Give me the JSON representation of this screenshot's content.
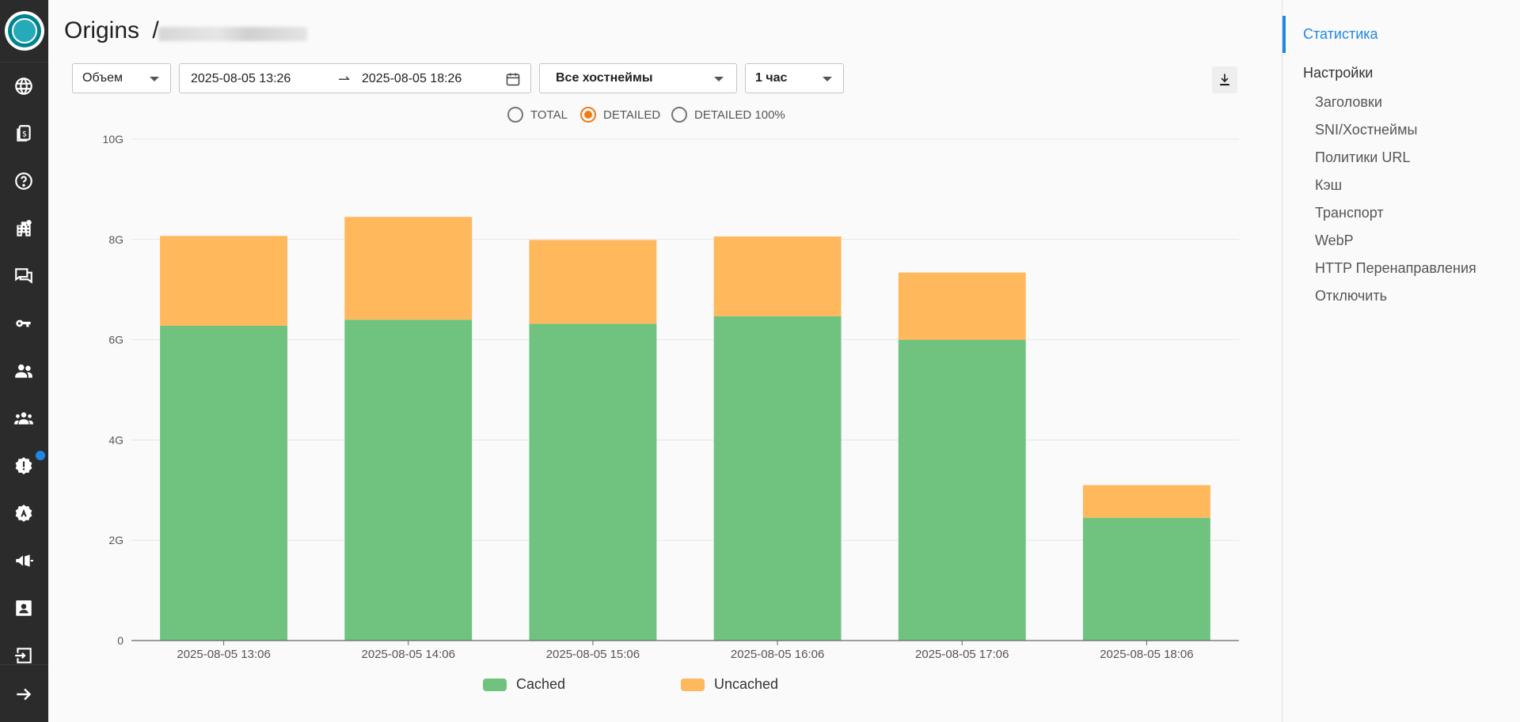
{
  "header": {
    "title": "Origins",
    "separator": "/"
  },
  "filters": {
    "metric": "Объем",
    "date_from": "2025-08-05 13:26",
    "date_to": "2025-08-05 18:26",
    "arrow": "⇀",
    "hostnames": "Все хостнеймы",
    "interval": "1 час"
  },
  "radios": [
    {
      "label": "TOTAL",
      "checked": false
    },
    {
      "label": "DETAILED",
      "checked": true
    },
    {
      "label": "DETAILED 100%",
      "checked": false
    }
  ],
  "chart_data": {
    "type": "bar",
    "stacked": true,
    "categories": [
      "2025-08-05 13:06",
      "2025-08-05 14:06",
      "2025-08-05 15:06",
      "2025-08-05 16:06",
      "2025-08-05 17:06",
      "2025-08-05 18:06"
    ],
    "series": [
      {
        "name": "Cached",
        "color": "#6fc37f",
        "values": [
          6.28,
          6.4,
          6.32,
          6.47,
          6.0,
          2.45
        ]
      },
      {
        "name": "Uncached",
        "color": "#ffb85c",
        "values": [
          1.79,
          2.05,
          1.67,
          1.59,
          1.34,
          0.65
        ]
      }
    ],
    "y_ticks": [
      "0",
      "2G",
      "4G",
      "6G",
      "8G",
      "10G"
    ],
    "ylim": [
      0,
      10
    ],
    "grid": true,
    "legend": "bottom"
  },
  "right_nav": {
    "items": [
      {
        "label": "Статистика",
        "active": true
      },
      {
        "label": "Настройки",
        "section": true
      },
      {
        "label": "Заголовки"
      },
      {
        "label": "SNI/Хостнеймы"
      },
      {
        "label": "Политики URL"
      },
      {
        "label": "Кэш"
      },
      {
        "label": "Транспорт"
      },
      {
        "label": "WebP"
      },
      {
        "label": "HTTP Перенаправления"
      },
      {
        "label": "Отключить"
      }
    ]
  },
  "icons": {
    "nav": [
      "globe-icon",
      "billing-icon",
      "help-icon",
      "building-icon",
      "chat-icon",
      "key-icon",
      "users-icon",
      "groups-icon",
      "alert-icon",
      "badge-icon",
      "announcement-icon",
      "contacts-icon",
      "logout-icon",
      "expand-icon"
    ]
  },
  "colors": {
    "accent": "#1e88e5",
    "radio_checked": "#ef7d16",
    "cached": "#6fc37f",
    "uncached": "#ffb85c"
  }
}
